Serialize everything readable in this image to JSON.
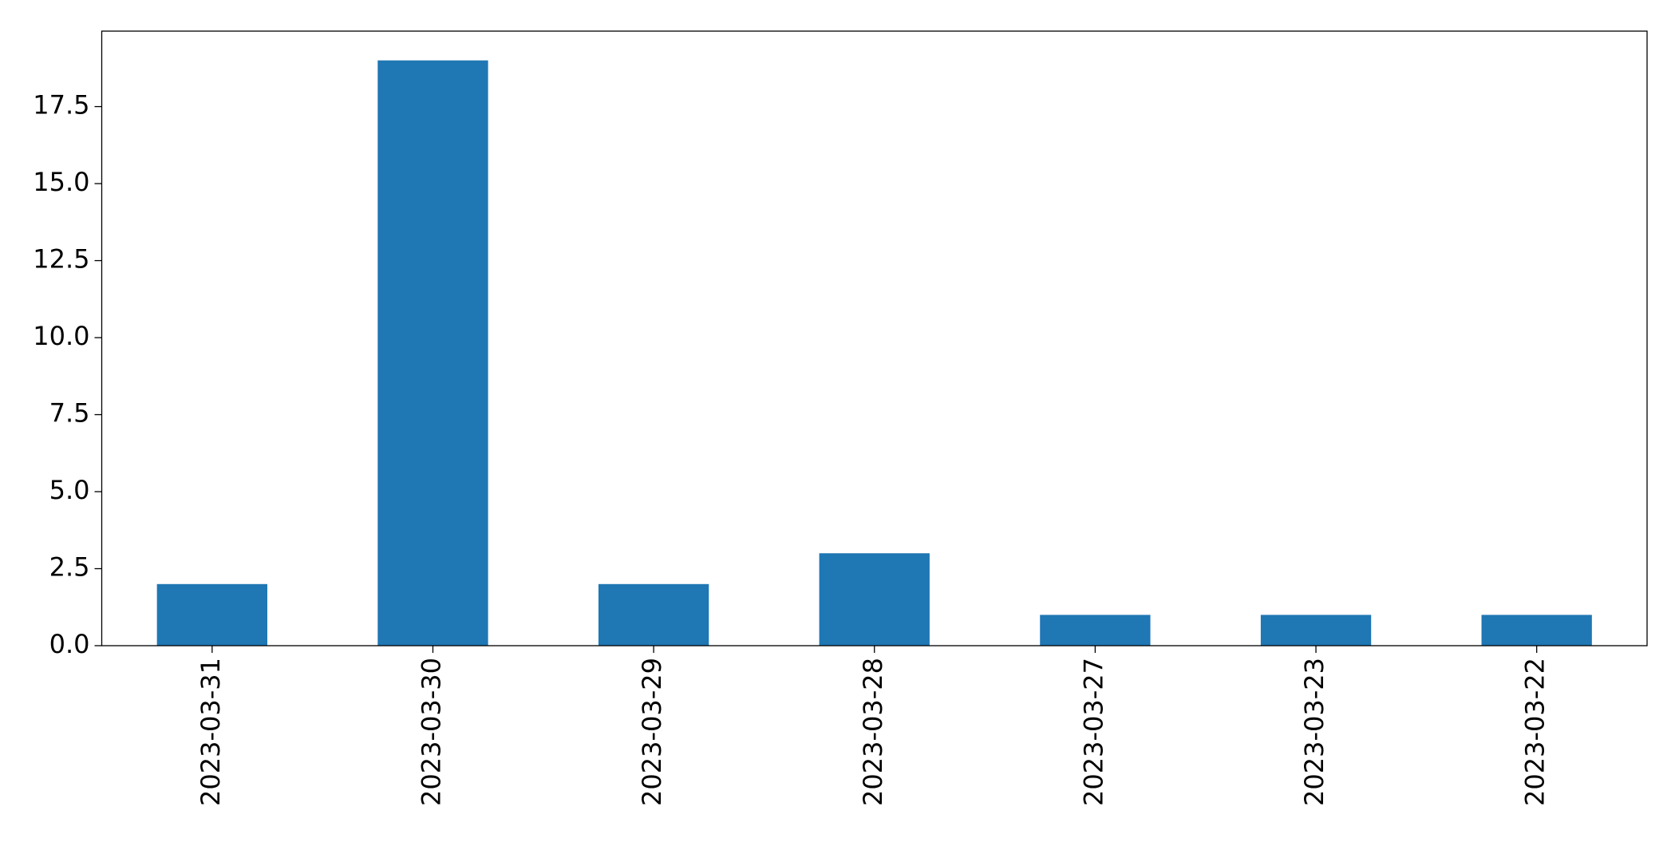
{
  "chart_data": {
    "type": "bar",
    "categories": [
      "2023-03-31",
      "2023-03-30",
      "2023-03-29",
      "2023-03-28",
      "2023-03-27",
      "2023-03-23",
      "2023-03-22"
    ],
    "values": [
      2,
      19,
      2,
      3,
      1,
      1,
      1
    ],
    "color": "#1f77b4",
    "ylim": [
      0,
      19.95
    ],
    "yticks": [
      {
        "value": 0,
        "label": "0.0"
      },
      2.5,
      {
        "value": 5,
        "label": "5.0"
      },
      7.5,
      {
        "value": 10,
        "label": "10.0"
      },
      12.5,
      {
        "value": 15,
        "label": "15.0"
      },
      17.5
    ],
    "grid": false
  }
}
